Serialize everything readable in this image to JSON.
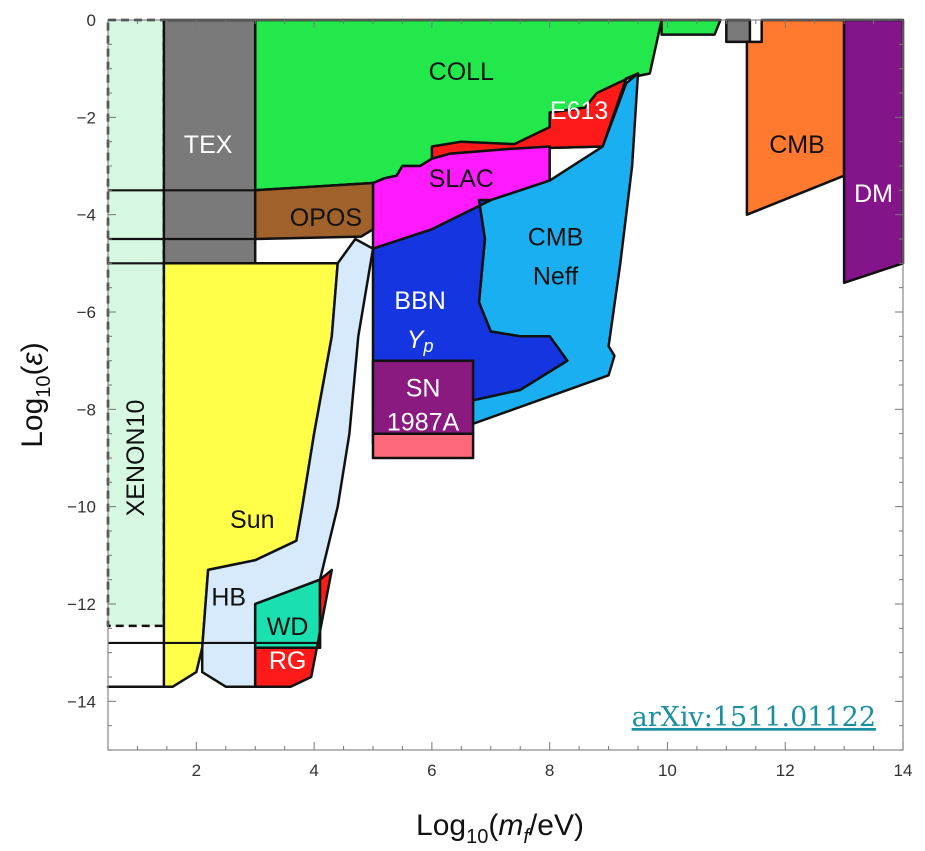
{
  "chart_data": {
    "type": "area",
    "title": "",
    "xlabel_parts": {
      "pre": "Log",
      "sub": "10",
      "mid": "(",
      "var": "m",
      "varsub": "f",
      "post": "/eV)"
    },
    "ylabel_parts": {
      "pre": "Log",
      "sub": "10",
      "mid": "(",
      "var": "ε",
      "post": ")"
    },
    "xlim": [
      0.5,
      14
    ],
    "ylim": [
      -15,
      0
    ],
    "xticks": [
      2,
      4,
      6,
      8,
      10,
      12,
      14
    ],
    "yticks": [
      0,
      -2,
      -4,
      -6,
      -8,
      -10,
      -12,
      -14
    ],
    "grid": false,
    "annotation": "arXiv:1511.01122",
    "regions": [
      {
        "label": "XENON10",
        "color": "#d6f7e0",
        "dashed": true,
        "vertical": true,
        "poly": [
          [
            0.5,
            0
          ],
          [
            1.45,
            0
          ],
          [
            1.45,
            -12.45
          ],
          [
            0.5,
            -12.45
          ]
        ]
      },
      {
        "label": "COLL",
        "color": "#22e84c",
        "poly": [
          [
            3.0,
            0
          ],
          [
            9.9,
            0
          ],
          [
            9.7,
            -1.1
          ],
          [
            9.3,
            -1.2
          ],
          [
            8.9,
            -2.6
          ],
          [
            7.3,
            -2.65
          ],
          [
            6.3,
            -2.75
          ],
          [
            6.0,
            -2.85
          ],
          [
            5.8,
            -3.0
          ],
          [
            5.5,
            -3.0
          ],
          [
            5.4,
            -3.2
          ],
          [
            5.2,
            -3.25
          ],
          [
            5.0,
            -3.35
          ],
          [
            3.0,
            -3.5
          ]
        ]
      },
      {
        "label": "COLL",
        "color": "#22e84c",
        "vertical": false,
        "hidden_label": true,
        "poly": [
          [
            9.9,
            0
          ],
          [
            10.9,
            0
          ],
          [
            10.8,
            -0.3
          ],
          [
            9.9,
            -0.3
          ]
        ]
      },
      {
        "label": "TEX",
        "color": "#7a7a7a",
        "poly": [
          [
            1.45,
            0
          ],
          [
            3.0,
            0
          ],
          [
            3.0,
            -5.0
          ],
          [
            1.45,
            -5.0
          ]
        ]
      },
      {
        "label": "",
        "color": "#7a7a7a",
        "hidden_label": true,
        "poly": [
          [
            11.0,
            0
          ],
          [
            11.4,
            0
          ],
          [
            11.4,
            -0.45
          ],
          [
            11.0,
            -0.45
          ]
        ]
      },
      {
        "label": "E613",
        "color": "#ff1a1a",
        "poly": [
          [
            7.4,
            -2.55
          ],
          [
            8.0,
            -2.2
          ],
          [
            8.0,
            -1.9
          ],
          [
            8.6,
            -1.8
          ],
          [
            8.8,
            -1.5
          ],
          [
            9.5,
            -1.1
          ],
          [
            9.3,
            -1.2
          ],
          [
            8.9,
            -2.6
          ],
          [
            7.3,
            -2.65
          ],
          [
            6.3,
            -2.75
          ],
          [
            6.0,
            -2.85
          ],
          [
            6.0,
            -2.6
          ],
          [
            6.5,
            -2.5
          ]
        ]
      },
      {
        "label": "SLAC",
        "color": "#ff1aff",
        "poly": [
          [
            5.0,
            -3.35
          ],
          [
            5.2,
            -3.25
          ],
          [
            5.4,
            -3.2
          ],
          [
            5.5,
            -3.0
          ],
          [
            5.8,
            -3.0
          ],
          [
            6.0,
            -2.85
          ],
          [
            6.3,
            -2.75
          ],
          [
            7.3,
            -2.65
          ],
          [
            8.0,
            -2.6
          ],
          [
            8.0,
            -3.3
          ],
          [
            7.0,
            -3.7
          ],
          [
            6.0,
            -4.3
          ],
          [
            5.0,
            -4.7
          ]
        ]
      },
      {
        "label": "OPOS",
        "color": "#a0612a",
        "poly": [
          [
            3.0,
            -3.5
          ],
          [
            5.0,
            -3.35
          ],
          [
            5.0,
            -4.3
          ],
          [
            4.8,
            -4.45
          ],
          [
            3.0,
            -4.5
          ]
        ]
      },
      {
        "label": "CMB Neff",
        "color": "#1aaff0",
        "poly": [
          [
            8.0,
            -3.3
          ],
          [
            8.9,
            -2.6
          ],
          [
            9.3,
            -1.3
          ],
          [
            9.5,
            -1.1
          ],
          [
            9.4,
            -3.0
          ],
          [
            9.2,
            -5.0
          ],
          [
            9.0,
            -6.7
          ],
          [
            9.1,
            -6.9
          ],
          [
            9.0,
            -7.3
          ],
          [
            6.0,
            -8.6
          ],
          [
            6.0,
            -8.0
          ],
          [
            7.5,
            -7.6
          ],
          [
            8.3,
            -7.0
          ],
          [
            8.0,
            -6.5
          ],
          [
            7.5,
            -6.5
          ],
          [
            7.0,
            -6.4
          ],
          [
            6.8,
            -5.8
          ],
          [
            6.9,
            -4.5
          ],
          [
            6.8,
            -3.7
          ],
          [
            7.0,
            -3.7
          ]
        ]
      },
      {
        "label": "BBN Yp",
        "color": "#1535e0",
        "poly": [
          [
            5.0,
            -4.7
          ],
          [
            6.0,
            -4.3
          ],
          [
            7.0,
            -3.7
          ],
          [
            6.8,
            -3.7
          ],
          [
            6.9,
            -4.5
          ],
          [
            6.8,
            -5.8
          ],
          [
            7.0,
            -6.4
          ],
          [
            7.5,
            -6.5
          ],
          [
            8.0,
            -6.5
          ],
          [
            8.3,
            -7.0
          ],
          [
            7.5,
            -7.6
          ],
          [
            6.0,
            -8.0
          ],
          [
            5.0,
            -8.7
          ],
          [
            5.0,
            -5.2
          ]
        ]
      },
      {
        "label": "SN 1987A",
        "color": "#8a1a80",
        "poly": [
          [
            5.0,
            -7.0
          ],
          [
            6.7,
            -7.0
          ],
          [
            6.7,
            -8.5
          ],
          [
            5.0,
            -8.5
          ]
        ]
      },
      {
        "label": "",
        "color": "#ff6a7a",
        "hidden_label": true,
        "poly": [
          [
            5.0,
            -8.5
          ],
          [
            6.7,
            -8.5
          ],
          [
            6.7,
            -9.0
          ],
          [
            5.0,
            -9.0
          ]
        ]
      },
      {
        "label": "Sun",
        "color": "#ffff4a",
        "poly": [
          [
            0.5,
            -13.7
          ],
          [
            1.45,
            -13.7
          ],
          [
            1.45,
            -5.0
          ],
          [
            4.4,
            -5.0
          ],
          [
            4.3,
            -6.5
          ],
          [
            4.0,
            -8.5
          ],
          [
            3.8,
            -10.0
          ],
          [
            3.7,
            -10.7
          ],
          [
            3.0,
            -11.1
          ],
          [
            2.2,
            -11.3
          ],
          [
            2.1,
            -12.9
          ],
          [
            2.0,
            -13.4
          ],
          [
            1.6,
            -13.7
          ]
        ]
      },
      {
        "label": "HB",
        "color": "#d6eafb",
        "poly": [
          [
            2.2,
            -11.3
          ],
          [
            3.0,
            -11.1
          ],
          [
            3.7,
            -10.7
          ],
          [
            3.8,
            -10.0
          ],
          [
            4.0,
            -8.5
          ],
          [
            4.3,
            -6.5
          ],
          [
            4.4,
            -5.0
          ],
          [
            4.7,
            -4.5
          ],
          [
            5.0,
            -4.7
          ],
          [
            4.75,
            -6.5
          ],
          [
            4.6,
            -8.5
          ],
          [
            4.4,
            -10.0
          ],
          [
            4.2,
            -11.0
          ],
          [
            4.1,
            -11.5
          ],
          [
            3.0,
            -12.0
          ],
          [
            3.0,
            -13.7
          ],
          [
            2.5,
            -13.7
          ],
          [
            2.1,
            -13.4
          ],
          [
            2.1,
            -12.9
          ]
        ]
      },
      {
        "label": "WD",
        "color": "#1ae0b0",
        "poly": [
          [
            3.0,
            -12.0
          ],
          [
            4.1,
            -11.5
          ],
          [
            4.1,
            -12.9
          ],
          [
            3.0,
            -12.9
          ]
        ]
      },
      {
        "label": "RG",
        "color": "#ff1a1a",
        "poly": [
          [
            3.0,
            -12.9
          ],
          [
            4.1,
            -12.9
          ],
          [
            4.1,
            -11.5
          ],
          [
            4.3,
            -11.3
          ],
          [
            3.95,
            -13.5
          ],
          [
            3.6,
            -13.7
          ],
          [
            3.0,
            -13.7
          ]
        ]
      },
      {
        "label": "CMB",
        "color": "#ff7a2e",
        "poly": [
          [
            11.6,
            0
          ],
          [
            13.0,
            0
          ],
          [
            13.0,
            -3.2
          ],
          [
            11.35,
            -4.0
          ],
          [
            11.35,
            -0.45
          ],
          [
            11.6,
            -0.45
          ]
        ]
      },
      {
        "label": "DM",
        "color": "#84148a",
        "poly": [
          [
            13.0,
            0
          ],
          [
            14.0,
            0
          ],
          [
            14.0,
            -5.0
          ],
          [
            13.0,
            -5.4
          ]
        ]
      }
    ],
    "labels": [
      {
        "text": "COLL",
        "x": 6.5,
        "y": -1.1,
        "color": "#111111"
      },
      {
        "text": "TEX",
        "x": 2.2,
        "y": -2.6,
        "color": "#ffffff"
      },
      {
        "text": "E613",
        "x": 8.5,
        "y": -1.9,
        "color": "#ffffff"
      },
      {
        "text": "SLAC",
        "x": 6.5,
        "y": -3.3,
        "color": "#111111"
      },
      {
        "text": "OPOS",
        "x": 4.2,
        "y": -4.1,
        "color": "#111111"
      },
      {
        "text": "CMB",
        "x": 8.1,
        "y": -4.5,
        "color": "#111111"
      },
      {
        "text": "Neff",
        "x": 8.1,
        "y": -5.3,
        "color": "#111111"
      },
      {
        "text": "BBN",
        "x": 5.8,
        "y": -5.8,
        "color": "#ffffff"
      },
      {
        "text": "Yp",
        "x": 5.8,
        "y": -6.6,
        "color": "#ffffff"
      },
      {
        "text": "SN",
        "x": 5.85,
        "y": -7.6,
        "color": "#ffffff"
      },
      {
        "text": "1987A",
        "x": 5.85,
        "y": -8.3,
        "color": "#ffffff"
      },
      {
        "text": "XENON10",
        "x": 1.0,
        "y": -9.0,
        "color": "#111111",
        "rotate": -90
      },
      {
        "text": "Sun",
        "x": 2.95,
        "y": -10.3,
        "color": "#111111"
      },
      {
        "text": "HB",
        "x": 2.55,
        "y": -11.9,
        "color": "#111111"
      },
      {
        "text": "WD",
        "x": 3.55,
        "y": -12.5,
        "color": "#111111"
      },
      {
        "text": "RG",
        "x": 3.55,
        "y": -13.2,
        "color": "#ffffff"
      },
      {
        "text": "CMB",
        "x": 12.2,
        "y": -2.6,
        "color": "#111111"
      },
      {
        "text": "DM",
        "x": 13.5,
        "y": -3.6,
        "color": "#ffffff"
      }
    ],
    "hlines": [
      -3.5,
      -4.5,
      -5.0,
      -12.8
    ],
    "hline_extent": {
      "-3.5": [
        0.5,
        3.0
      ],
      "-4.5": [
        0.5,
        3.0
      ],
      "-5.0": [
        0.5,
        1.45
      ],
      "-12.8": [
        0.5,
        4.1
      ]
    }
  }
}
